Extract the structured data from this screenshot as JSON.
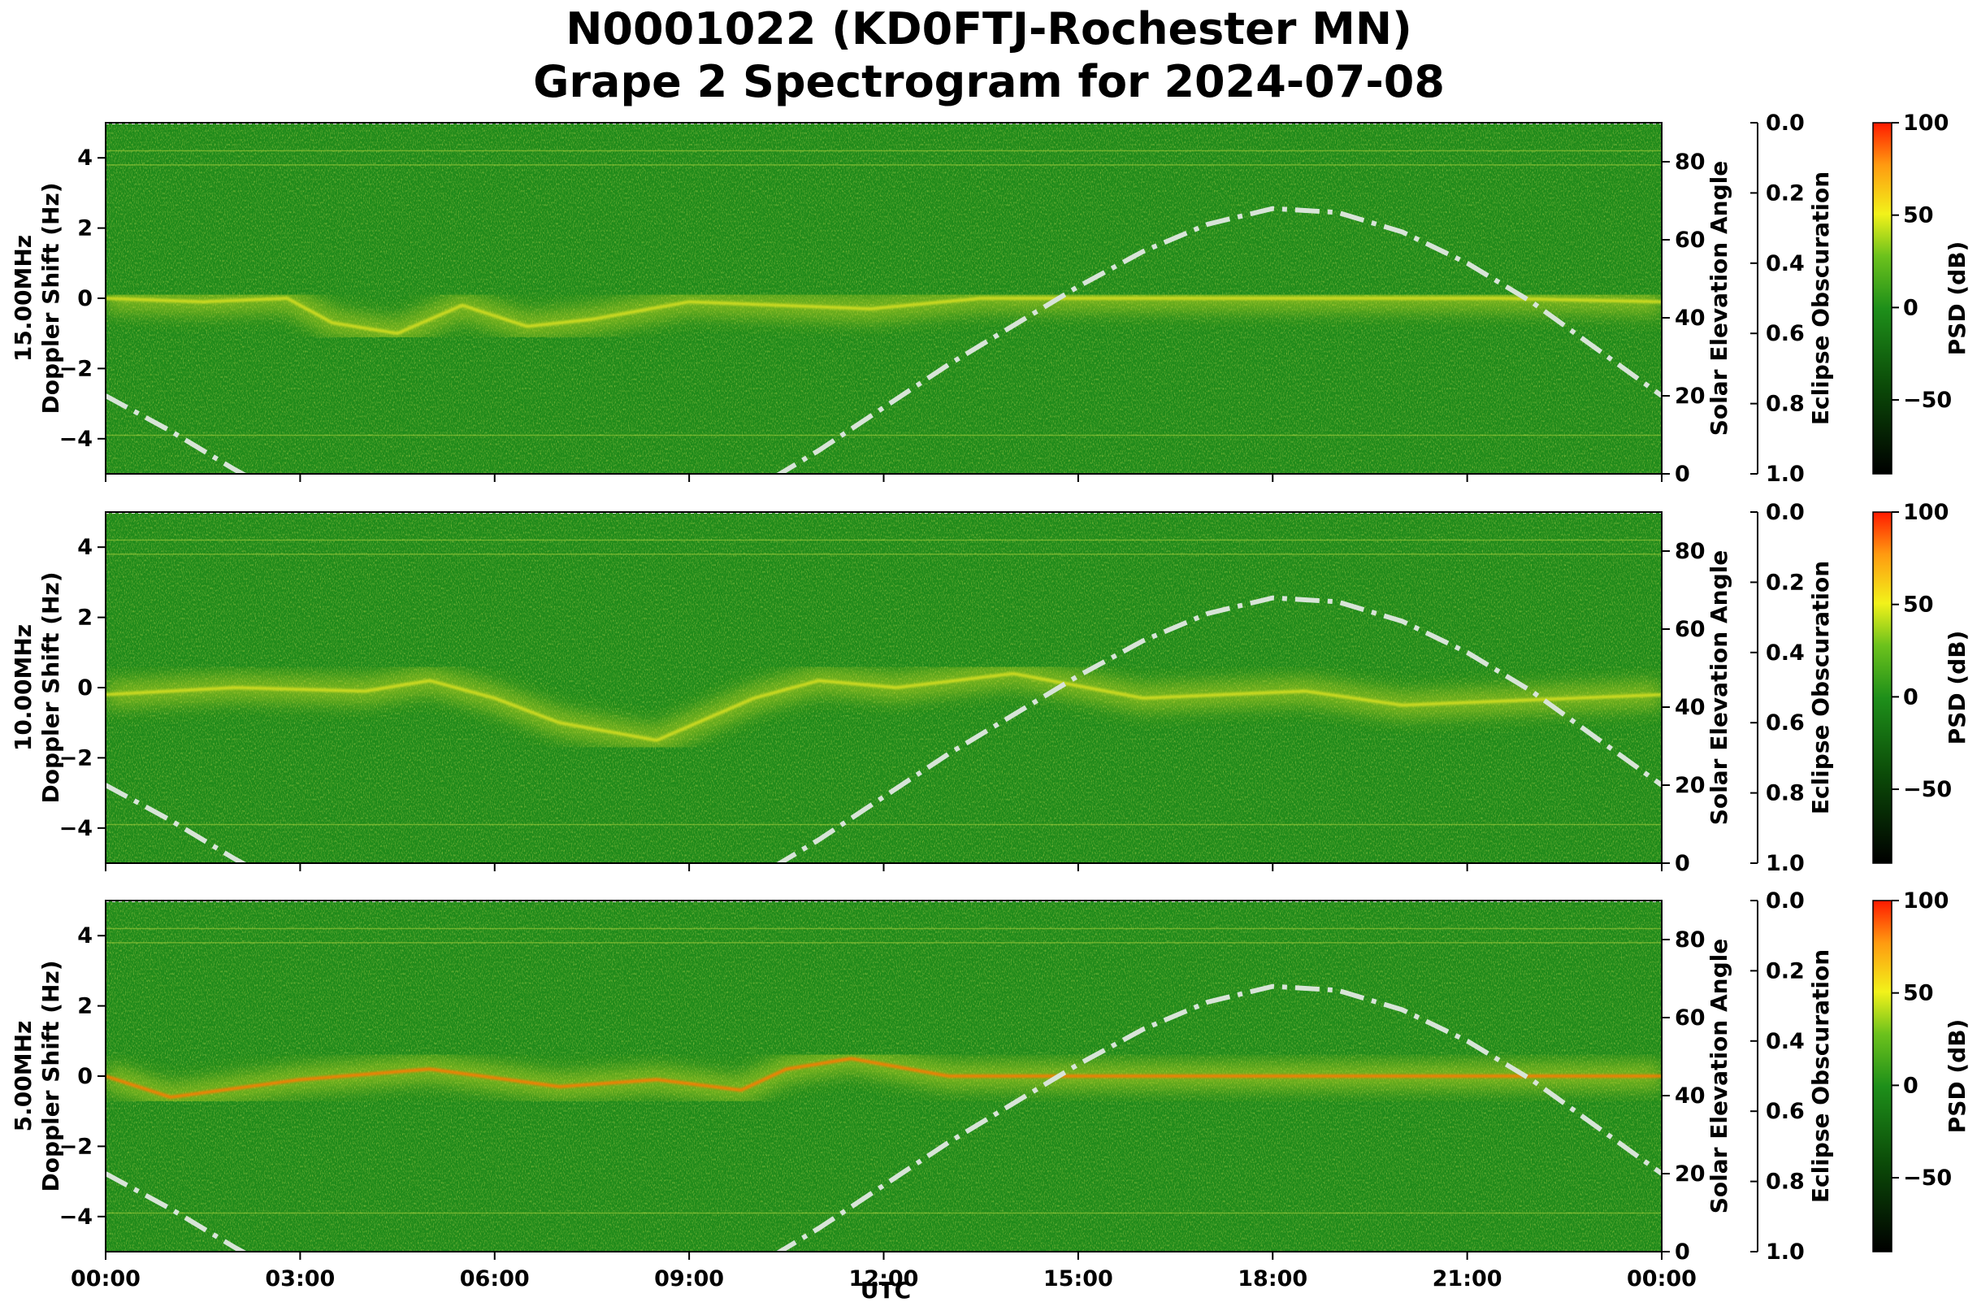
{
  "title_line1": "N0001022 (KD0FTJ-Rochester MN)",
  "title_line2": "Grape 2 Spectrogram for 2024-07-08",
  "xlabel": "UTC",
  "x_ticks": [
    "00:00",
    "03:00",
    "06:00",
    "09:00",
    "12:00",
    "15:00",
    "18:00",
    "21:00",
    "00:00"
  ],
  "y_ticks": [
    "4",
    "2",
    "0",
    "−2",
    "−4"
  ],
  "elev_ticks": [
    "80",
    "60",
    "40",
    "20",
    "0"
  ],
  "eclipse_ticks": [
    "0.0",
    "0.2",
    "0.4",
    "0.6",
    "0.8",
    "1.0"
  ],
  "cbar_ticks": [
    "100",
    "50",
    "0",
    "−50"
  ],
  "cbar_label": "PSD (dB)",
  "right_axis_label": "Solar Elevation Angle",
  "eclipse_label": "Eclipse Obscuration",
  "ylabel_line2": "Doppler Shift (Hz)",
  "colors": {
    "background": "#1f8a1a",
    "noise": "#3a9a1c",
    "signal": "#d8e020",
    "strong": "#ff7a00",
    "curve": "#d8e4d8"
  },
  "chart_data": {
    "type": "heatmap",
    "xlim_hours": [
      0,
      24
    ],
    "ylim_hz": [
      -5,
      5
    ],
    "elevation_lim_deg": [
      0,
      90
    ],
    "eclipse_lim": [
      0.0,
      1.0
    ],
    "psd_lim_db": [
      -90,
      100
    ],
    "panels": [
      {
        "freq_label": "15.00MHz",
        "signal": [
          [
            0,
            0
          ],
          [
            1.5,
            -0.1
          ],
          [
            2.8,
            0
          ],
          [
            3.5,
            -0.7
          ],
          [
            4.5,
            -1.0
          ],
          [
            5.5,
            -0.2
          ],
          [
            6.5,
            -0.8
          ],
          [
            7.5,
            -0.6
          ],
          [
            9,
            -0.1
          ],
          [
            11.8,
            -0.3
          ],
          [
            13.5,
            0
          ],
          [
            21.5,
            0
          ],
          [
            24,
            -0.1
          ]
        ]
      },
      {
        "freq_label": "10.00MHz",
        "signal": [
          [
            0,
            -0.2
          ],
          [
            2,
            0
          ],
          [
            4,
            -0.1
          ],
          [
            5,
            0.2
          ],
          [
            6,
            -0.3
          ],
          [
            7,
            -1.0
          ],
          [
            8.5,
            -1.5
          ],
          [
            10,
            -0.3
          ],
          [
            11,
            0.2
          ],
          [
            12.2,
            0
          ],
          [
            14,
            0.4
          ],
          [
            16,
            -0.3
          ],
          [
            18.5,
            -0.1
          ],
          [
            20,
            -0.5
          ],
          [
            24,
            -0.2
          ]
        ]
      },
      {
        "freq_label": "5.00MHz",
        "signal": [
          [
            0,
            0
          ],
          [
            1,
            -0.6
          ],
          [
            3,
            -0.1
          ],
          [
            5,
            0.2
          ],
          [
            7,
            -0.3
          ],
          [
            8.5,
            -0.1
          ],
          [
            9.8,
            -0.4
          ],
          [
            10.5,
            0.2
          ],
          [
            11.5,
            0.5
          ],
          [
            13,
            0
          ],
          [
            24,
            0
          ]
        ]
      }
    ],
    "solar_elevation_deg": [
      [
        0,
        20
      ],
      [
        1,
        11
      ],
      [
        2,
        1
      ],
      [
        3,
        -8
      ],
      [
        4,
        -15
      ],
      [
        5,
        -21
      ],
      [
        6,
        -24
      ],
      [
        7,
        -24
      ],
      [
        8,
        -20
      ],
      [
        9,
        -13
      ],
      [
        10,
        -4
      ],
      [
        11,
        6
      ],
      [
        12,
        17
      ],
      [
        13,
        28
      ],
      [
        14,
        38
      ],
      [
        15,
        48
      ],
      [
        16,
        57
      ],
      [
        17,
        64
      ],
      [
        18,
        68
      ],
      [
        19,
        67
      ],
      [
        20,
        62
      ],
      [
        21,
        54
      ],
      [
        22,
        44
      ],
      [
        23,
        32
      ],
      [
        24,
        20
      ]
    ]
  }
}
